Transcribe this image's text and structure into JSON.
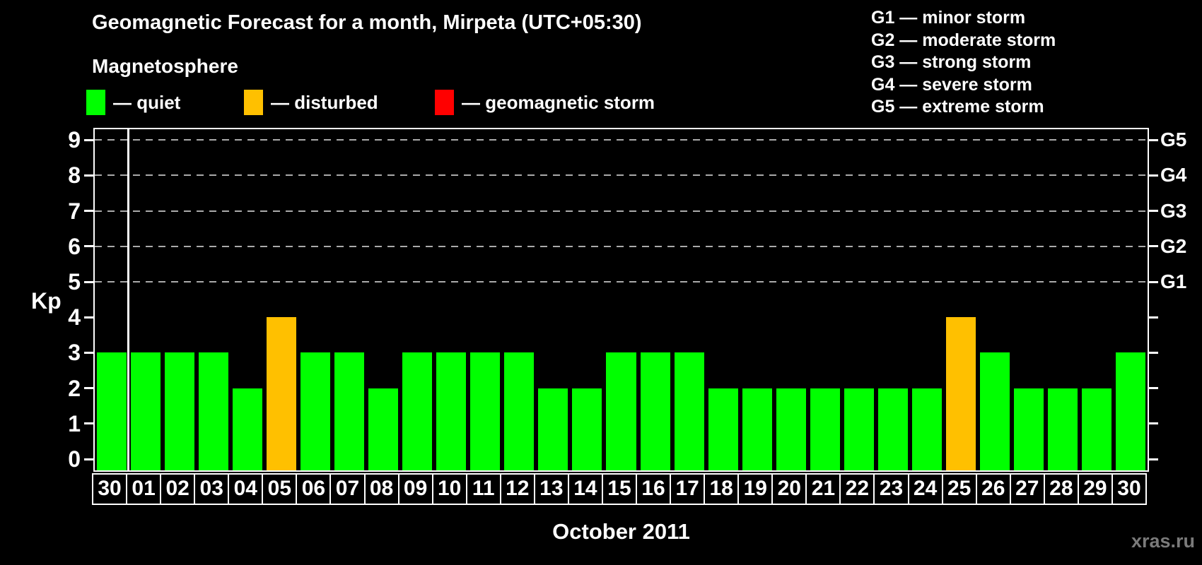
{
  "title": "Geomagnetic Forecast for a month, Mirpeta (UTC+05:30)",
  "subtitle": "Magnetosphere",
  "legend": {
    "items": [
      {
        "key": "quiet",
        "label": "— quiet",
        "color": "#00ff00"
      },
      {
        "key": "disturbed",
        "label": "— disturbed",
        "color": "#ffc000"
      },
      {
        "key": "storm",
        "label": "— geomagnetic storm",
        "color": "#ff0000"
      }
    ]
  },
  "storm_scale_legend": [
    "G1 — minor storm",
    "G2 — moderate storm",
    "G3 — strong storm",
    "G4 — severe storm",
    "G5 — extreme storm"
  ],
  "footer": {
    "x_axis_title": "October 2011",
    "watermark": "xras.ru"
  },
  "chart_data": {
    "type": "bar",
    "title": "Geomagnetic Forecast for a month, Mirpeta (UTC+05:30)",
    "ylabel": "Kp",
    "xlabel": "October 2011",
    "ylim": [
      0,
      9
    ],
    "y_ticks": [
      0,
      1,
      2,
      3,
      4,
      5,
      6,
      7,
      8,
      9
    ],
    "grid": "horizontal dashed lines at Kp 5-9 (G1-G5 storm levels)",
    "legend_position": "top",
    "right_axis_labels": [
      {
        "label": "G1",
        "kp": 5
      },
      {
        "label": "G2",
        "kp": 6
      },
      {
        "label": "G3",
        "kp": 7
      },
      {
        "label": "G4",
        "kp": 8
      },
      {
        "label": "G5",
        "kp": 9
      }
    ],
    "categories": [
      "30",
      "01",
      "02",
      "03",
      "04",
      "05",
      "06",
      "07",
      "08",
      "09",
      "10",
      "11",
      "12",
      "13",
      "14",
      "15",
      "16",
      "17",
      "18",
      "19",
      "20",
      "21",
      "22",
      "23",
      "24",
      "25",
      "26",
      "27",
      "28",
      "29",
      "30"
    ],
    "values": [
      3,
      3,
      3,
      3,
      2,
      4,
      3,
      3,
      2,
      3,
      3,
      3,
      3,
      2,
      2,
      3,
      3,
      3,
      2,
      2,
      2,
      2,
      2,
      2,
      2,
      4,
      3,
      2,
      2,
      2,
      3
    ],
    "statuses": [
      "quiet",
      "quiet",
      "quiet",
      "quiet",
      "quiet",
      "disturbed",
      "quiet",
      "quiet",
      "quiet",
      "quiet",
      "quiet",
      "quiet",
      "quiet",
      "quiet",
      "quiet",
      "quiet",
      "quiet",
      "quiet",
      "quiet",
      "quiet",
      "quiet",
      "quiet",
      "quiet",
      "quiet",
      "quiet",
      "disturbed",
      "quiet",
      "quiet",
      "quiet",
      "quiet",
      "quiet"
    ]
  }
}
